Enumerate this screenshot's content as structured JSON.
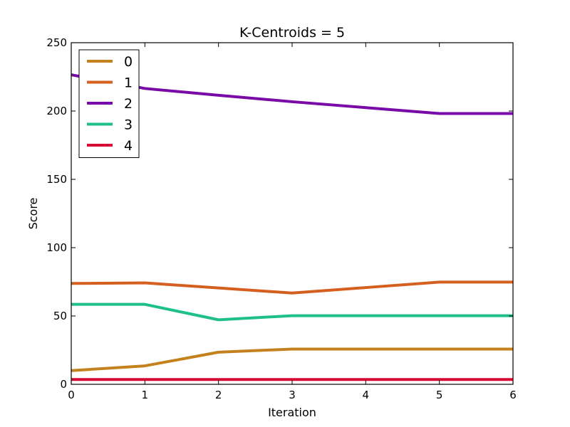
{
  "chart_data": {
    "type": "line",
    "title": "K-Centroids = 5",
    "xlabel": "Iteration",
    "ylabel": "Score",
    "xlim": [
      0,
      6
    ],
    "ylim": [
      0,
      250
    ],
    "xticks": [
      0,
      1,
      2,
      3,
      4,
      5,
      6
    ],
    "yticks": [
      0,
      50,
      100,
      150,
      200,
      250
    ],
    "grid": false,
    "legend_position": "top-left",
    "x": [
      0,
      1,
      2,
      3,
      4,
      5,
      6
    ],
    "series": [
      {
        "name": "0",
        "color": "#c4821e",
        "values": [
          10,
          13.5,
          23.5,
          25.8,
          25.8,
          25.8,
          25.8
        ]
      },
      {
        "name": "1",
        "color": "#d45f1e",
        "values": [
          73.8,
          74.2,
          70.5,
          66.8,
          70.8,
          74.8,
          74.8
        ]
      },
      {
        "name": "2",
        "color": "#7a0aa8",
        "values": [
          226.5,
          216.5,
          211.5,
          206.8,
          202.5,
          198.2,
          198.2
        ]
      },
      {
        "name": "3",
        "color": "#1fbf8a",
        "values": [
          58.5,
          58.5,
          47.2,
          50.2,
          50.2,
          50.2,
          50.2
        ]
      },
      {
        "name": "4",
        "color": "#d60a35",
        "values": [
          3.5,
          3.5,
          3.5,
          3.5,
          3.5,
          3.5,
          3.5
        ]
      }
    ]
  }
}
